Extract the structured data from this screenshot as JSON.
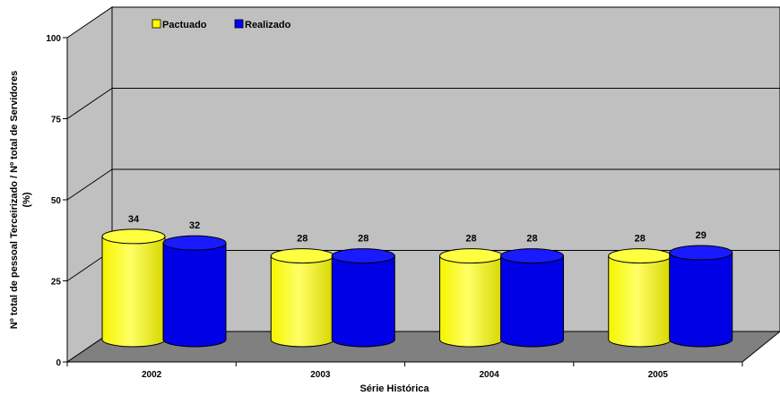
{
  "chart_data": {
    "type": "bar",
    "title": "",
    "categories": [
      "2002",
      "2003",
      "2004",
      "2005"
    ],
    "series": [
      {
        "name": "Pactuado",
        "values": [
          34,
          28,
          28,
          28
        ],
        "color": "#FFFF00"
      },
      {
        "name": "Realizado",
        "values": [
          32,
          28,
          28,
          29
        ],
        "color": "#0000FF"
      }
    ],
    "xlabel": "Série Histórica",
    "ylabel_line1": "Nº total de pessoal Terceirizado / Nº total de Servidores",
    "ylabel_line2": "(%)",
    "ylim": [
      0,
      100
    ],
    "yticks": [
      0,
      25,
      50,
      75,
      100
    ],
    "grid": true,
    "legend_position": "top-left",
    "style": "3d-cylinder",
    "wall_color": "#C0C0C0",
    "floor_color": "#808080"
  }
}
